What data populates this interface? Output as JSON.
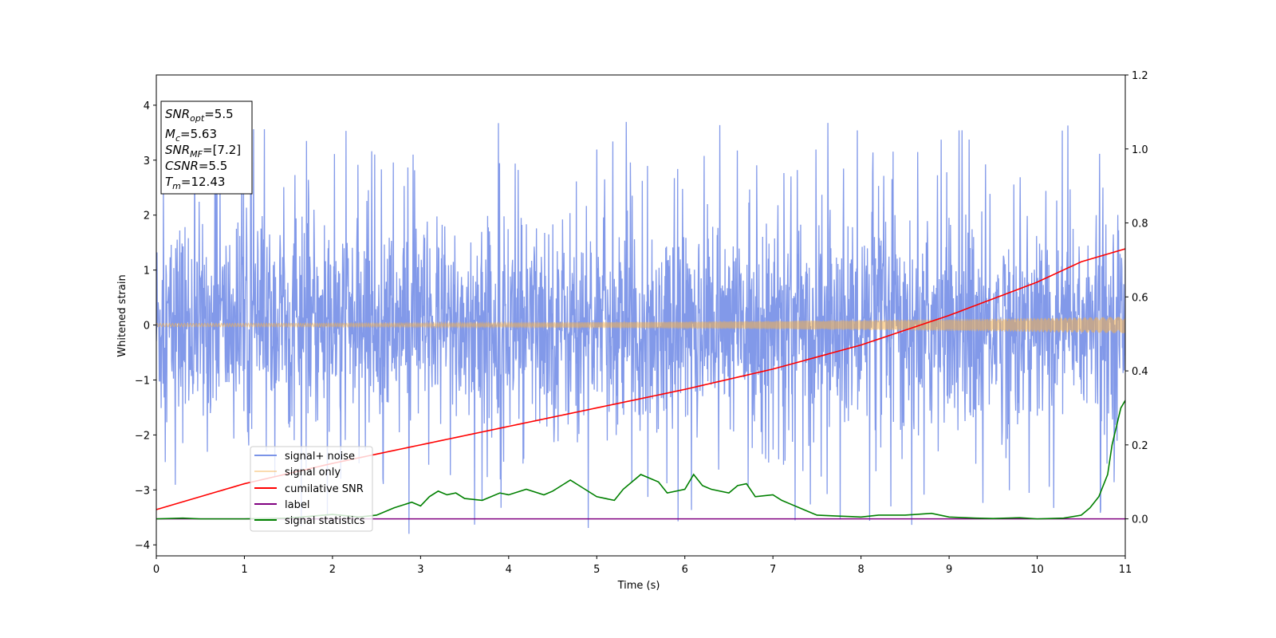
{
  "chart_data": {
    "type": "line",
    "xlabel": "Time (s)",
    "ylabel": "Whitened strain",
    "xlim": [
      0,
      11
    ],
    "ylim": [
      -4.2,
      4.55
    ],
    "y2lim": [
      -0.1,
      1.2
    ],
    "x_ticks": [
      "0",
      "1",
      "2",
      "3",
      "4",
      "5",
      "6",
      "7",
      "8",
      "9",
      "10",
      "11"
    ],
    "y_ticks": [
      "−4",
      "−3",
      "−2",
      "−1",
      "0",
      "1",
      "2",
      "3",
      "4"
    ],
    "y2_ticks": [
      "0.0",
      "0.2",
      "0.4",
      "0.6",
      "0.8",
      "1.0",
      "1.2"
    ],
    "grid": false,
    "legend_position": "lower-left",
    "info_box": {
      "line1_prefix": "SNR",
      "line1_sub": "opt",
      "line1_value": "=5.5",
      "line2_prefix": "M",
      "line2_sub": "c",
      "line2_value": "=5.63",
      "line3_prefix": "SNR",
      "line3_sub": "MF",
      "line3_value": "=[7.2]",
      "line4_prefix": "CSNR",
      "line4_value": "=5.5",
      "line5_prefix": "T",
      "line5_sub": "m",
      "line5_value": "=12.43"
    },
    "series": [
      {
        "name": "signal+ noise",
        "axis": "left",
        "color": "#7b94e8",
        "note_values": "dense noisy trace approximately within ±2, spikes up to about 3.8 and down to about -3.8",
        "envelope": {
          "typical_abs": 2.0,
          "peak_max": 3.8,
          "peak_min": -3.8
        }
      },
      {
        "name": "signal only",
        "axis": "left",
        "color": "#f5b14a",
        "amplitude_start": 0.03,
        "amplitude_end": 0.15
      },
      {
        "name": "cumilative SNR",
        "axis": "right",
        "color": "#ff0000",
        "x": [
          0,
          1,
          2,
          3,
          4,
          5,
          6,
          7,
          8,
          9,
          10,
          10.5,
          11
        ],
        "y": [
          0.025,
          0.095,
          0.15,
          0.2,
          0.25,
          0.3,
          0.35,
          0.405,
          0.47,
          0.55,
          0.64,
          0.695,
          0.73
        ]
      },
      {
        "name": "label",
        "axis": "right",
        "color": "#800080",
        "x": [
          0,
          11
        ],
        "y": [
          0.0,
          0.0
        ]
      },
      {
        "name": "signal statistics",
        "axis": "right",
        "color": "#008000",
        "x": [
          0,
          0.3,
          0.5,
          1.0,
          1.5,
          2.0,
          2.3,
          2.5,
          2.7,
          2.9,
          3.0,
          3.1,
          3.2,
          3.3,
          3.4,
          3.5,
          3.7,
          3.9,
          4.0,
          4.2,
          4.4,
          4.5,
          4.6,
          4.7,
          4.8,
          5.0,
          5.2,
          5.3,
          5.5,
          5.7,
          5.8,
          6.0,
          6.1,
          6.2,
          6.3,
          6.5,
          6.6,
          6.7,
          6.8,
          7.0,
          7.1,
          7.2,
          7.4,
          7.5,
          7.7,
          7.9,
          8.0,
          8.2,
          8.5,
          8.8,
          9.0,
          9.3,
          9.5,
          9.8,
          10.0,
          10.3,
          10.5,
          10.6,
          10.7,
          10.8,
          10.85,
          10.9,
          10.95,
          11.0
        ],
        "y": [
          0.0,
          0.002,
          0.0,
          0.0,
          0.002,
          0.012,
          0.005,
          0.01,
          0.03,
          0.045,
          0.035,
          0.06,
          0.075,
          0.065,
          0.07,
          0.055,
          0.05,
          0.07,
          0.065,
          0.08,
          0.065,
          0.075,
          0.09,
          0.105,
          0.09,
          0.06,
          0.05,
          0.08,
          0.12,
          0.1,
          0.07,
          0.08,
          0.12,
          0.09,
          0.08,
          0.07,
          0.09,
          0.095,
          0.06,
          0.065,
          0.05,
          0.04,
          0.02,
          0.01,
          0.008,
          0.006,
          0.005,
          0.01,
          0.01,
          0.015,
          0.005,
          0.002,
          0.001,
          0.003,
          0.0,
          0.002,
          0.01,
          0.03,
          0.06,
          0.12,
          0.2,
          0.25,
          0.3,
          0.32
        ]
      }
    ]
  }
}
